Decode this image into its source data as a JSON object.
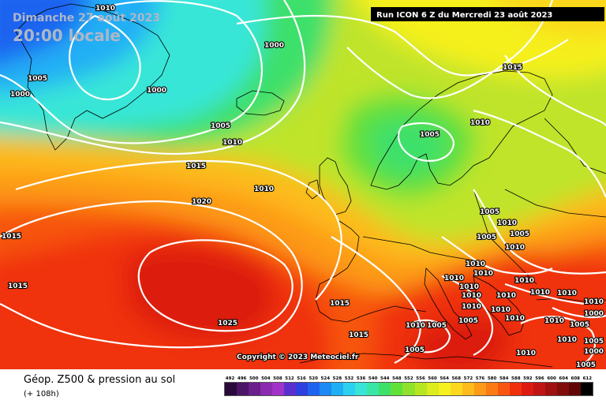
{
  "map": {
    "date_line_1": "Dimanche 27 août 2023",
    "date_line_2": "20:00 locale",
    "run_banner": "Run ICON 6 Z du Mercredi 23 août 2023",
    "copyright": "Copyright © 2023 Meteociel.fr",
    "isobar_labels": [
      "1010",
      "1000",
      "1005",
      "1000",
      "1000",
      "1005",
      "1010",
      "1015",
      "1010",
      "1020",
      "1015",
      "1015",
      "1025",
      "1015",
      "1015",
      "1015",
      "1010",
      "1005",
      "1005",
      "1005",
      "1010",
      "1005",
      "1010",
      "1010",
      "1010",
      "1010",
      "1010",
      "1010",
      "1010",
      "1010",
      "1010",
      "1010",
      "1010",
      "1010",
      "1010",
      "1010",
      "1005",
      "1005",
      "1005",
      "1010",
      "1010",
      "1005",
      "1000",
      "1010",
      "1005",
      "1000",
      "1010",
      "1005"
    ]
  },
  "legend": {
    "title": "Géop. Z500 & pression au sol",
    "subtitle": "(+ 108h)",
    "scale_values": [
      "492",
      "496",
      "500",
      "504",
      "508",
      "512",
      "516",
      "520",
      "524",
      "528",
      "532",
      "536",
      "540",
      "544",
      "548",
      "552",
      "556",
      "560",
      "564",
      "568",
      "572",
      "576",
      "580",
      "584",
      "588",
      "592",
      "596",
      "600",
      "604",
      "608",
      "612"
    ],
    "scale_colors": [
      "#2a0a3a",
      "#4b1666",
      "#6a1f8a",
      "#8a2bb0",
      "#a033c8",
      "#5a2fd0",
      "#2f3fe0",
      "#1e63f0",
      "#1c8af5",
      "#20aff5",
      "#2cd1f0",
      "#38e6d8",
      "#39e6a6",
      "#3ee06a",
      "#62e03a",
      "#8ee22c",
      "#b6e622",
      "#dcec1e",
      "#f5f01e",
      "#fbd81e",
      "#fdbb1c",
      "#fd9a18",
      "#fb7a14",
      "#f75510",
      "#f0300c",
      "#dc1a10",
      "#c01414",
      "#a01010",
      "#800c0c",
      "#600808",
      "#000000"
    ]
  }
}
